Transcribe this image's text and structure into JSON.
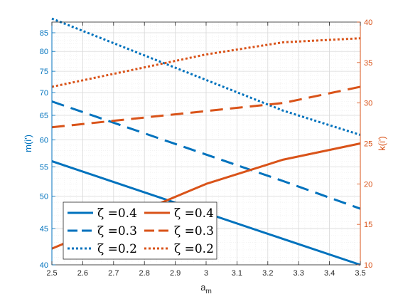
{
  "colors": {
    "left_axis": "#0072BD",
    "right_axis": "#D95319",
    "grid": "#d9d9d9",
    "axis": "#262626"
  },
  "chart_data": {
    "type": "line",
    "x_label": "a_m",
    "x_label_main": "a",
    "x_label_sub": "m",
    "xlim": [
      2.5,
      3.5
    ],
    "x_ticks": [
      2.5,
      2.6,
      2.7,
      2.8,
      2.9,
      3,
      3.1,
      3.2,
      3.3,
      3.4,
      3.5
    ],
    "x_tick_labels": [
      "2.5",
      "2.6",
      "2.7",
      "2.8",
      "2.9",
      "3",
      "3.1",
      "3.2",
      "3.3",
      "3.4",
      "3.5"
    ],
    "left_axis": {
      "label": "m(i')",
      "scale": "log",
      "ylim": [
        40,
        88
      ],
      "ticks": [
        40,
        45,
        50,
        55,
        60,
        65,
        70,
        75,
        80,
        85
      ],
      "tick_labels": [
        "40",
        "45",
        "50",
        "55",
        "60",
        "65",
        "70",
        "75",
        "80",
        "85"
      ]
    },
    "right_axis": {
      "label": "k(i')",
      "scale": "linear",
      "ylim": [
        10,
        40
      ],
      "ticks": [
        10,
        15,
        20,
        25,
        30,
        35,
        40
      ],
      "tick_labels": [
        "10",
        "15",
        "20",
        "25",
        "30",
        "35",
        "40"
      ]
    },
    "grid": true,
    "legend_placement": "bottom-left",
    "series": [
      {
        "name": "ζ =0.4",
        "axis": "left",
        "style": "solid",
        "x": [
          2.5,
          3.25,
          3.5
        ],
        "y": [
          56,
          43.5,
          40
        ]
      },
      {
        "name": "ζ =0.3",
        "axis": "left",
        "style": "dashed",
        "x": [
          2.5,
          3.25,
          3.5
        ],
        "y": [
          68,
          52.5,
          48
        ]
      },
      {
        "name": "ζ =0.2",
        "axis": "left",
        "style": "dotted",
        "x": [
          2.5,
          3.25,
          3.5
        ],
        "y": [
          89,
          66,
          61
        ]
      },
      {
        "name": "ζ =0.4",
        "axis": "right",
        "style": "solid",
        "x": [
          2.5,
          3,
          3.25,
          3.5
        ],
        "y": [
          12,
          20,
          23,
          25
        ]
      },
      {
        "name": "ζ =0.3",
        "axis": "right",
        "style": "dashed",
        "x": [
          2.5,
          3,
          3.25,
          3.5
        ],
        "y": [
          27,
          29,
          30,
          32
        ]
      },
      {
        "name": "ζ =0.2",
        "axis": "right",
        "style": "dotted",
        "x": [
          2.5,
          3,
          3.25,
          3.5
        ],
        "y": [
          32,
          36,
          37.5,
          38
        ]
      }
    ]
  }
}
